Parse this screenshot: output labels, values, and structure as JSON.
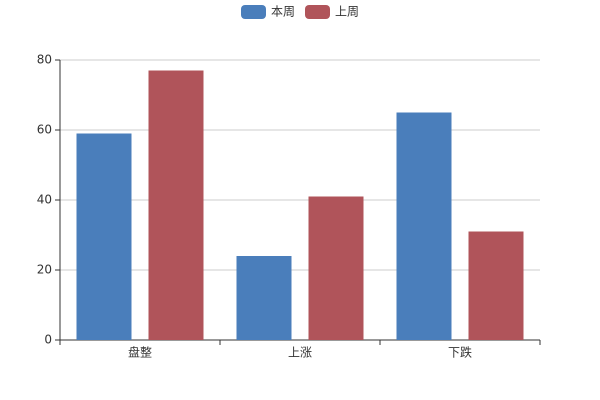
{
  "chart_data": {
    "type": "bar",
    "categories": [
      "盘整",
      "上涨",
      "下跌"
    ],
    "series": [
      {
        "name": "本周",
        "color": "#4a7ebb",
        "values": [
          59,
          24,
          65
        ]
      },
      {
        "name": "上周",
        "color": "#b0545a",
        "values": [
          77,
          41,
          31
        ]
      }
    ],
    "ylim": [
      0,
      80
    ],
    "yticks": [
      0,
      20,
      40,
      60,
      80
    ],
    "grid": true,
    "legend": "top"
  }
}
